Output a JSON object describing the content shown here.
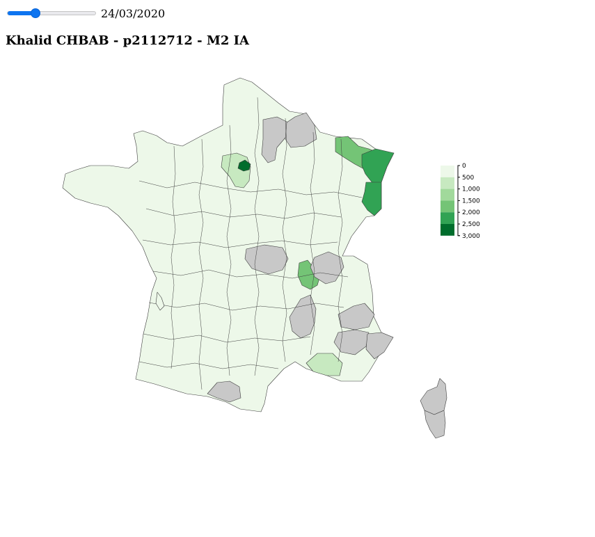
{
  "date_slider": {
    "value_fraction": 0.31,
    "date_label": "24/03/2020"
  },
  "title": "Khalid CHBAB - p2112712 - M2 IA",
  "legend": {
    "colors": [
      "#edf8e9",
      "#c7e9c0",
      "#a1d99b",
      "#74c476",
      "#31a354",
      "#006d2c"
    ],
    "no_data_color": "#c8c8c8",
    "ticks": [
      "0",
      "500",
      "1,000",
      "1,500",
      "2,000",
      "2,500",
      "3,000"
    ]
  }
}
